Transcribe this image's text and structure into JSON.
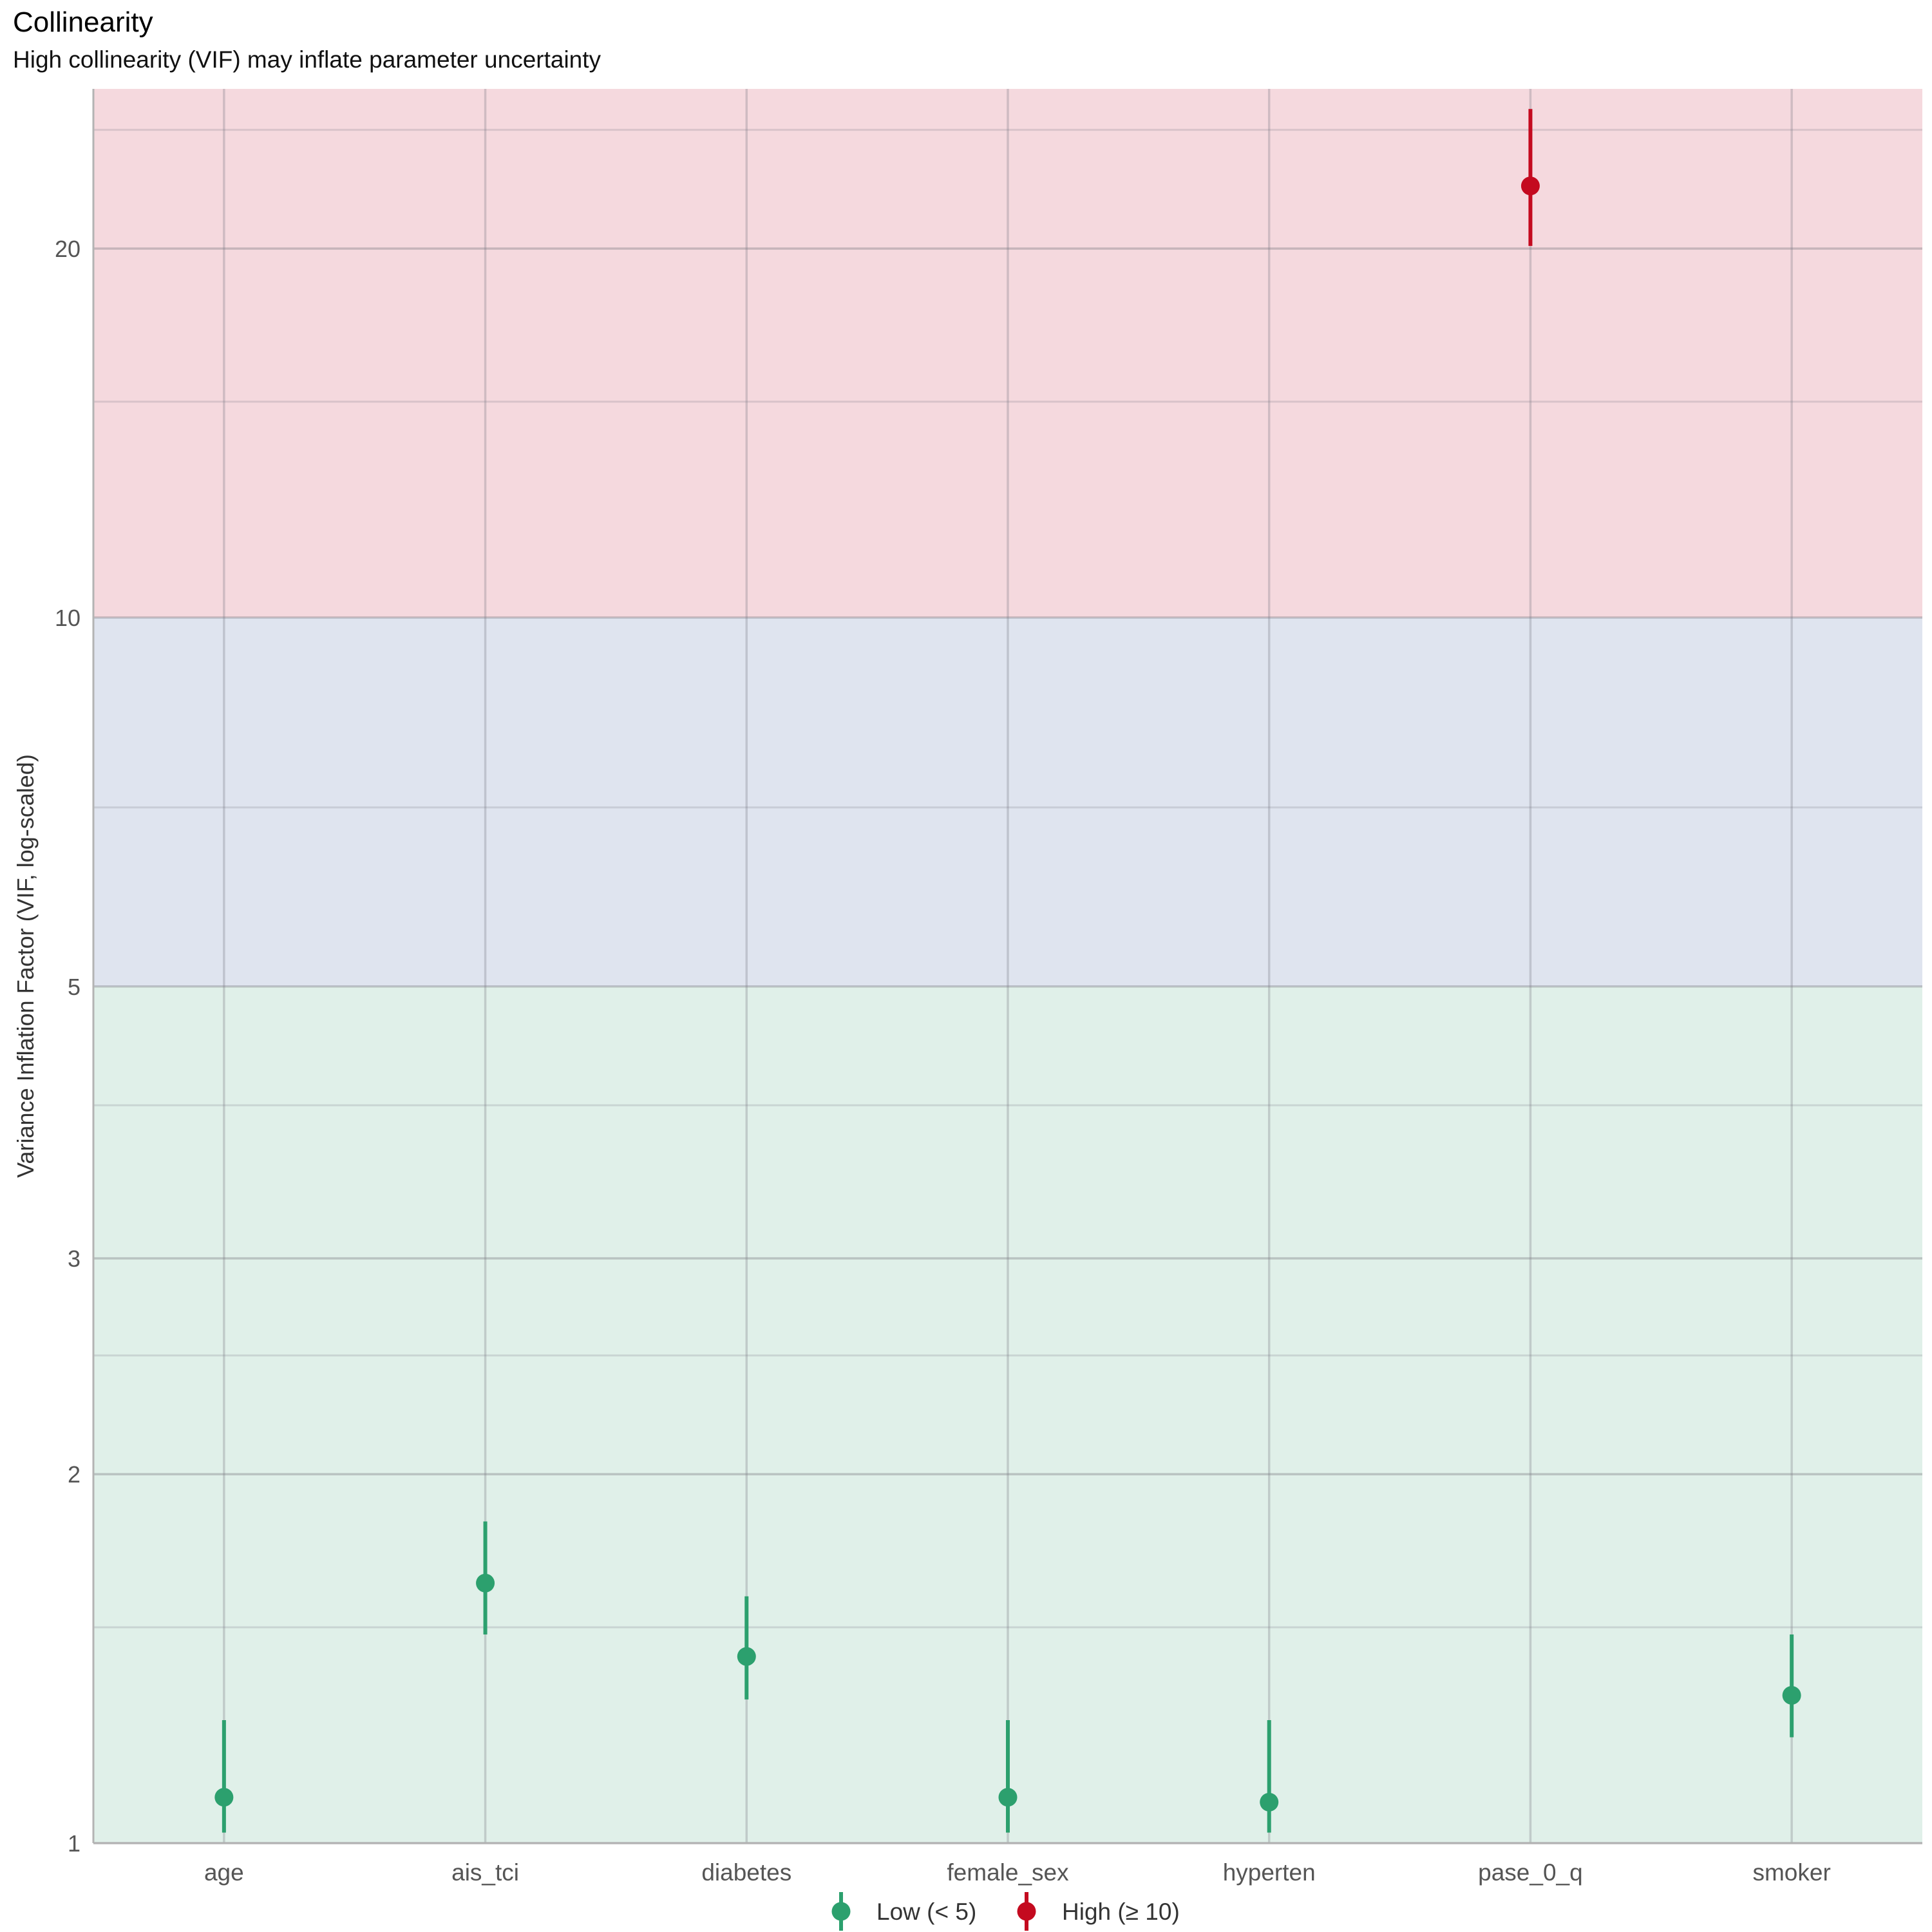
{
  "chart_data": {
    "type": "scatter",
    "title": "Collinearity",
    "subtitle": "High collinearity (VIF) may inflate parameter uncertainty",
    "xlabel": "",
    "ylabel": "Variance Inflation Factor (VIF, log-scaled)",
    "y_scale": "log",
    "ylim": [
      1,
      27
    ],
    "y_ticks": [
      1,
      2,
      3,
      5,
      10,
      20
    ],
    "grid": true,
    "bands": [
      {
        "from": 1,
        "to": 5,
        "color": "#e0f0e9"
      },
      {
        "from": 5,
        "to": 10,
        "color": "#dfe4ef"
      },
      {
        "from": 10,
        "to": 27,
        "color": "#f5d9de"
      }
    ],
    "categories": [
      "age",
      "ais_tci",
      "diabetes",
      "female_sex",
      "hyperten",
      "pase_0_q",
      "smoker"
    ],
    "values": [
      1.09,
      1.63,
      1.42,
      1.09,
      1.08,
      22.5,
      1.32
    ],
    "ci_low": [
      1.02,
      1.48,
      1.31,
      1.02,
      1.02,
      20.1,
      1.22
    ],
    "ci_high": [
      1.26,
      1.83,
      1.59,
      1.26,
      1.26,
      26.0,
      1.48
    ],
    "groups": [
      "Low (< 5)",
      "Low (< 5)",
      "Low (< 5)",
      "Low (< 5)",
      "Low (< 5)",
      "High (≥ 10)",
      "Low (< 5)"
    ],
    "legend": {
      "position": "bottom",
      "entries": [
        {
          "label": "Low (< 5)",
          "color": "#2ca06e"
        },
        {
          "label": "High (≥ 10)",
          "color": "#c40a1f"
        }
      ]
    }
  }
}
